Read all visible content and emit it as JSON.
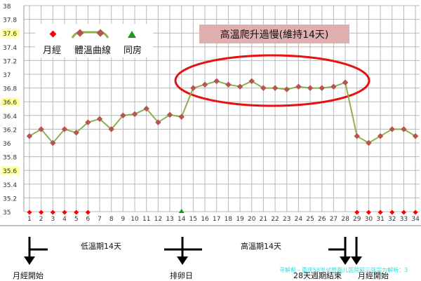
{
  "chart_data": {
    "type": "line",
    "x": [
      1,
      2,
      3,
      4,
      5,
      6,
      7,
      8,
      9,
      10,
      11,
      12,
      13,
      14,
      15,
      16,
      17,
      18,
      19,
      20,
      21,
      22,
      23,
      24,
      25,
      26,
      27,
      28,
      29,
      30,
      31,
      32,
      33,
      34
    ],
    "series": [
      {
        "name": "體溫曲線",
        "values": [
          36.1,
          36.2,
          36.0,
          36.2,
          36.15,
          36.3,
          36.35,
          36.2,
          36.4,
          36.42,
          36.5,
          36.3,
          36.41,
          36.38,
          36.8,
          36.85,
          36.9,
          36.85,
          36.82,
          36.9,
          36.8,
          36.8,
          36.78,
          36.82,
          36.8,
          36.8,
          36.82,
          36.88,
          36.1,
          36.0,
          36.1,
          36.2,
          36.2,
          36.1
        ]
      }
    ],
    "menstruation_days": [
      1,
      2,
      3,
      4,
      5,
      6,
      29,
      30,
      31,
      32,
      33,
      34
    ],
    "intercourse_days": [
      14
    ],
    "ylim": [
      35,
      38
    ],
    "yticks": [
      "35",
      "35.2",
      "35.4",
      "35.6",
      "35.8",
      "36",
      "36.2",
      "36.4",
      "36.6",
      "36.8",
      "37",
      "37.2",
      "37.4",
      "37.6",
      "37.8",
      "38"
    ],
    "highlighted_yticks": [
      "35.6",
      "36.6",
      "37.6"
    ],
    "grid": true,
    "legend": {
      "position": "top-left",
      "items": [
        "月經",
        "體溫曲線",
        "同房"
      ]
    },
    "annotation": "高溫爬升過慢(維持14天)",
    "colors": {
      "line": "#8db04a",
      "marker": "#b85450",
      "menstruation": "#ff0000",
      "intercourse": "#1a9a1a",
      "ellipse": "#e81010",
      "annotation_bg": "#e0b0b0",
      "tick_highlight": "#ffff99"
    }
  },
  "timeline": {
    "low_phase": "低溫期14天",
    "high_phase": "高溫期14天",
    "period_start_1": "月經開始",
    "ovulation": "排卵日",
    "cycle_end": "28天週期結束",
    "period_start_2": "月經開始"
  },
  "watermark": "寻解帮 - 重庆58岁试管婴儿医院前三强实力解析：3"
}
